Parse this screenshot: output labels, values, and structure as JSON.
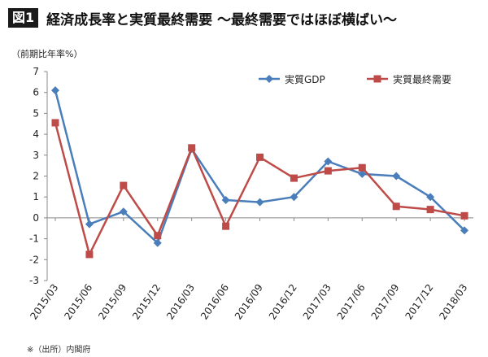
{
  "figure": {
    "badge": "図1",
    "title": "経済成長率と実質最終需要 ～最終需要ではほぼ横ばい～",
    "unit": "（前期比年率%）",
    "source": "※（出所）内閣府"
  },
  "chart_data": {
    "type": "line",
    "title": "経済成長率と実質最終需要 ～最終需要ではほぼ横ばい～",
    "ylabel": "（前期比年率%）",
    "xlabel": "",
    "categories": [
      "2015/03",
      "2015/06",
      "2015/09",
      "2015/12",
      "2016/03",
      "2016/06",
      "2016/09",
      "2016/12",
      "2017/03",
      "2017/06",
      "2017/09",
      "2017/12",
      "2018/03"
    ],
    "ylim": [
      -3,
      7
    ],
    "yticks": [
      -3,
      -2,
      -1,
      0,
      1,
      2,
      3,
      4,
      5,
      6,
      7
    ],
    "grid": false,
    "legend_position": "top-right",
    "series": [
      {
        "name": "実質GDP",
        "color": "#4a7ebb",
        "marker": "diamond",
        "values": [
          6.1,
          -0.3,
          0.3,
          -1.2,
          3.3,
          0.85,
          0.75,
          1.0,
          2.7,
          2.1,
          2.0,
          1.0,
          -0.6
        ]
      },
      {
        "name": "実質最終需要",
        "color": "#be4b48",
        "marker": "square",
        "values": [
          4.55,
          -1.75,
          1.55,
          -0.85,
          3.35,
          -0.4,
          2.9,
          1.9,
          2.25,
          2.4,
          0.55,
          0.4,
          0.1
        ]
      }
    ]
  }
}
